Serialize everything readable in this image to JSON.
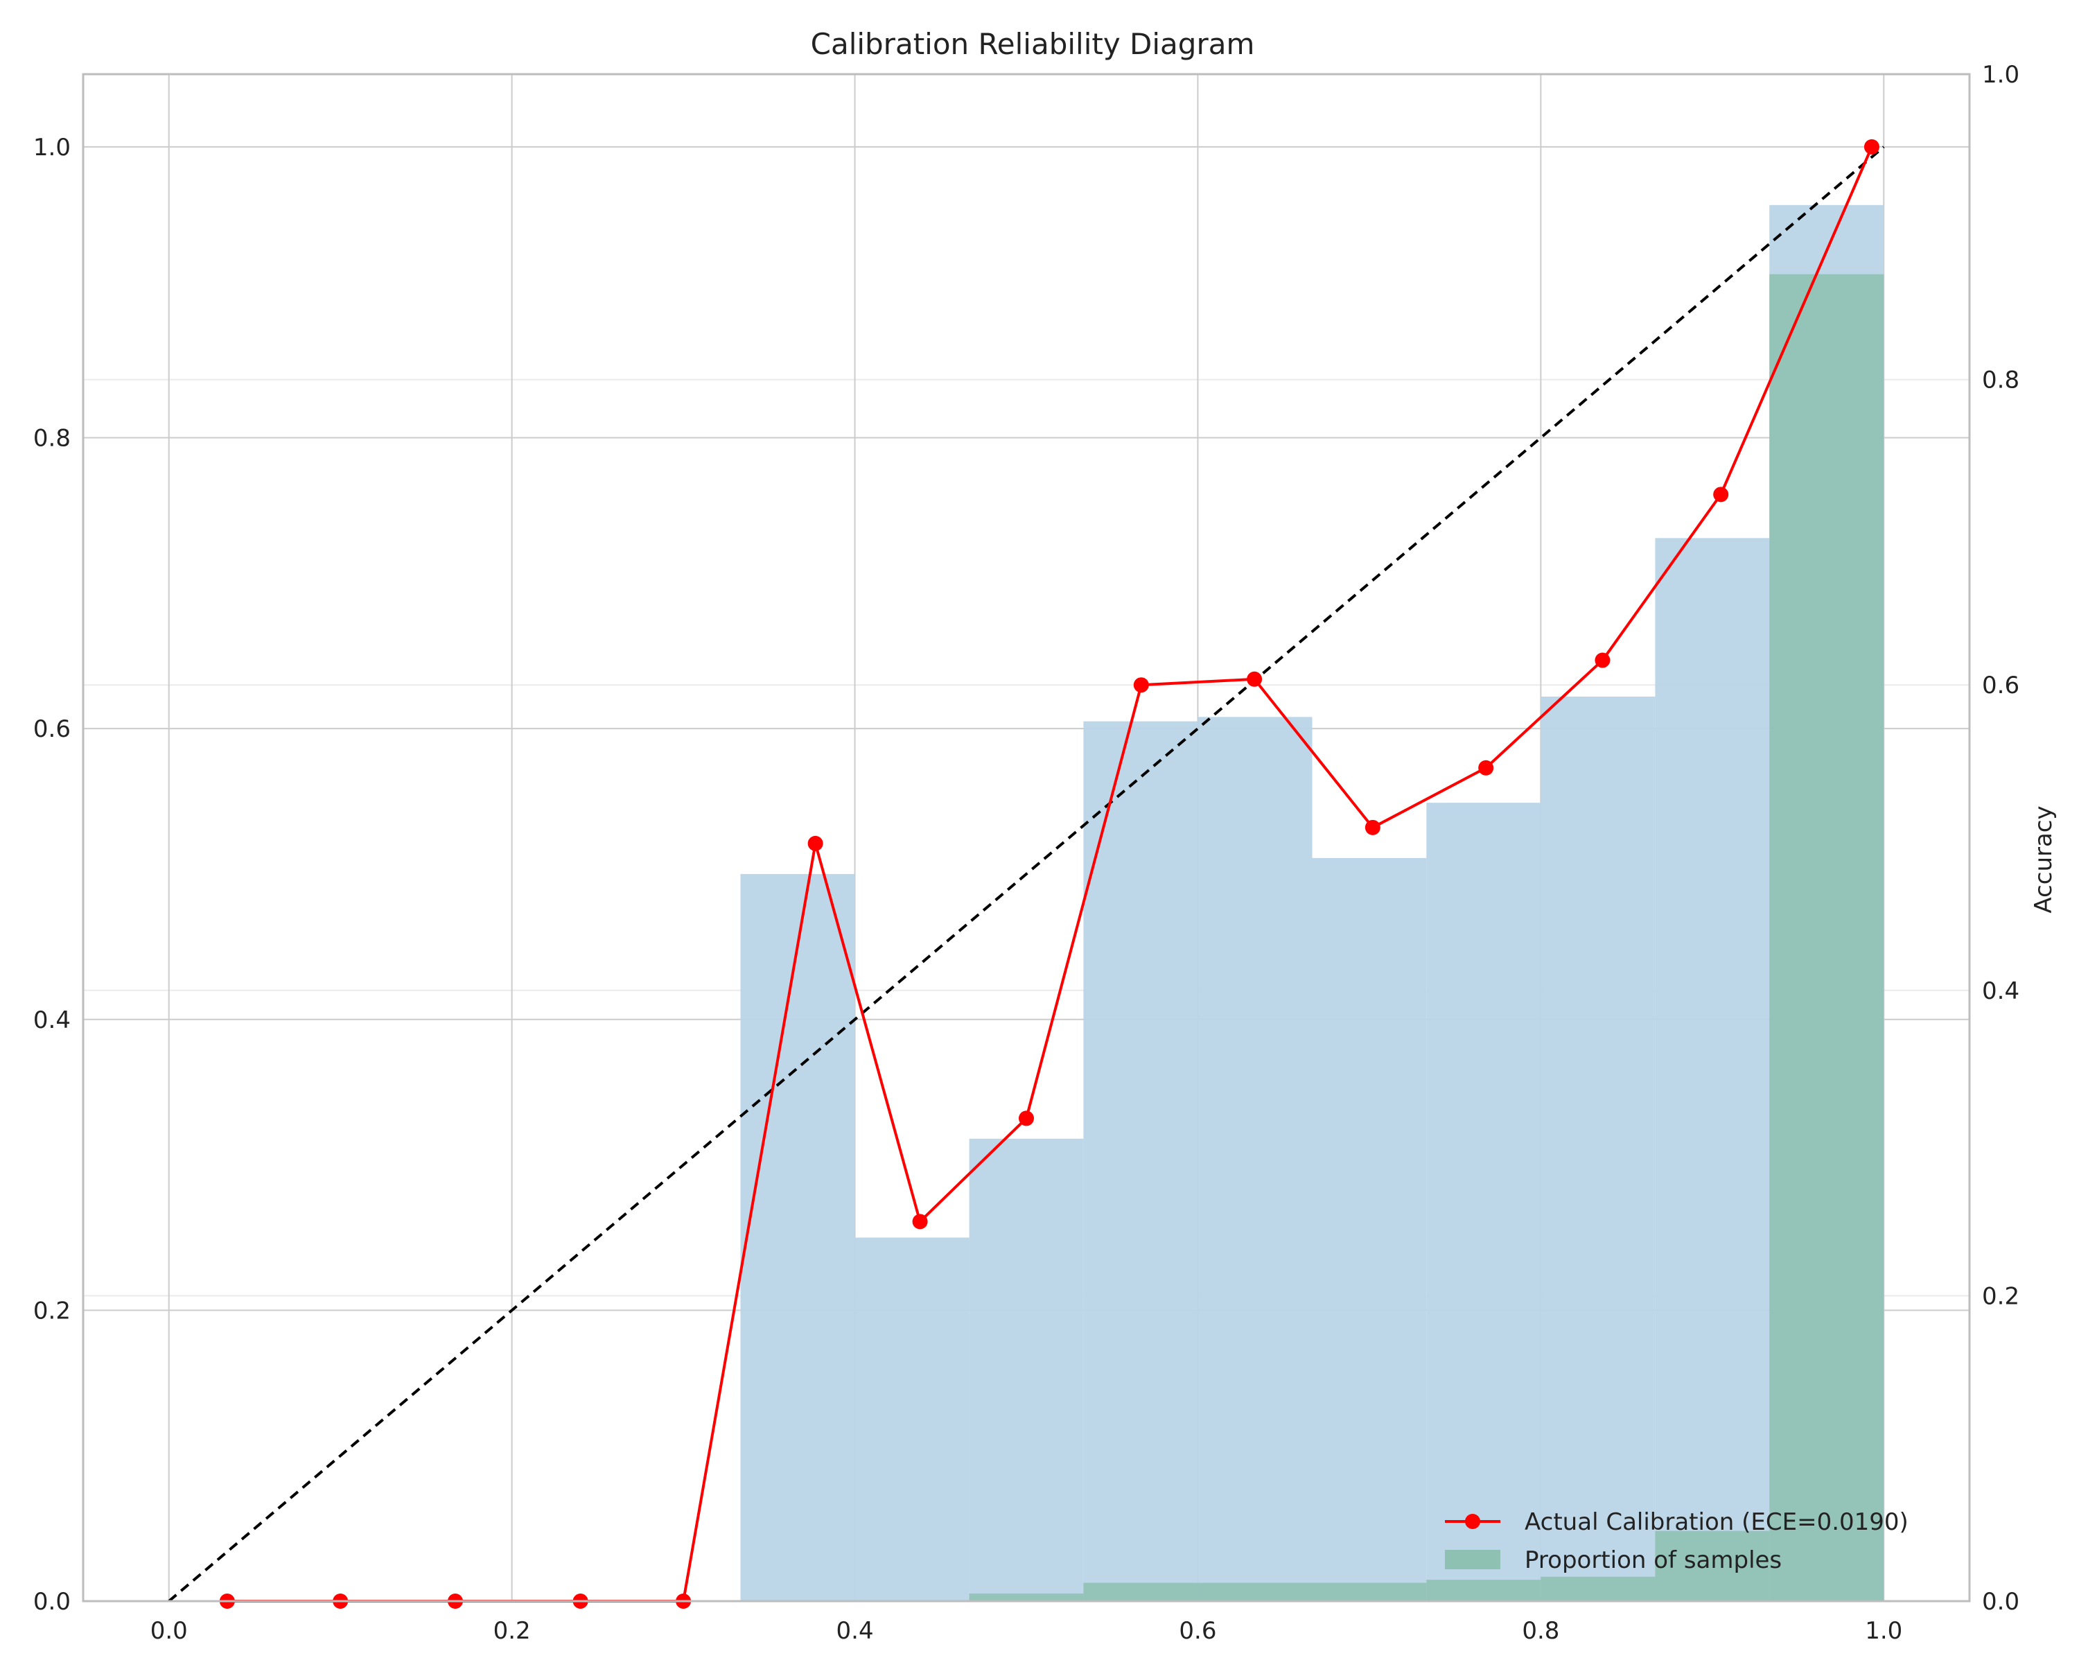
{
  "chart_data": {
    "type": "bar+line",
    "title": "Calibration Reliability Diagram",
    "xlabel": "",
    "ylabel_left": "",
    "ylabel_right": "Accuracy",
    "xlim": [
      -0.05,
      1.05
    ],
    "ylim_left": [
      0.0,
      1.05
    ],
    "ylim_right": [
      0.0,
      1.0
    ],
    "x_ticks": [
      "0.0",
      "0.2",
      "0.4",
      "0.6",
      "0.8",
      "1.0"
    ],
    "x_tick_values": [
      0.0,
      0.2,
      0.4,
      0.6,
      0.8,
      1.0
    ],
    "y_left_ticks": [
      "0.0",
      "0.2",
      "0.4",
      "0.6",
      "0.8",
      "1.0"
    ],
    "y_left_tick_values": [
      0.0,
      0.2,
      0.4,
      0.6,
      0.8,
      1.0
    ],
    "y_right_ticks": [
      "0.0",
      "0.2",
      "0.4",
      "0.6",
      "0.8",
      "1.0"
    ],
    "y_right_tick_values": [
      0.0,
      0.2,
      0.4,
      0.6,
      0.8,
      1.0
    ],
    "grid": true,
    "bin_edges": [
      0.0,
      0.0667,
      0.1333,
      0.2,
      0.2667,
      0.3333,
      0.4,
      0.4667,
      0.5333,
      0.6,
      0.6667,
      0.7333,
      0.8,
      0.8667,
      0.9333,
      1.0
    ],
    "bars_accuracy_left_axis": [
      0,
      0,
      0,
      0,
      0,
      0.5,
      0.25,
      0.318,
      0.605,
      0.608,
      0.511,
      0.549,
      0.622,
      0.731,
      0.96
    ],
    "bars_proportion_right_axis": [
      0,
      0,
      0,
      0,
      0,
      0,
      0,
      0.005,
      0.012,
      0.012,
      0.012,
      0.014,
      0.016,
      0.046,
      0.869
    ],
    "calibration_curve": {
      "name": "Actual Calibration (ECE=0.0190)",
      "x": [
        0.034,
        0.1,
        0.167,
        0.24,
        0.3,
        0.377,
        0.438,
        0.5,
        0.567,
        0.633,
        0.702,
        0.768,
        0.836,
        0.905,
        0.993
      ],
      "y": [
        0.0,
        0.0,
        0.0,
        0.0,
        0.0,
        0.521,
        0.261,
        0.332,
        0.63,
        0.634,
        0.532,
        0.573,
        0.647,
        0.761,
        1.0
      ]
    },
    "perfect_line": {
      "x": [
        0.0,
        1.0
      ],
      "y": [
        0.0,
        1.0
      ]
    },
    "legend": {
      "position": "lower-right",
      "items": [
        "Actual Calibration (ECE=0.0190)",
        "Proportion of samples"
      ]
    },
    "colors": {
      "accuracy_bars": "#b9d5e8",
      "proportion_bars": "#8fc1b3",
      "curve": "#ff0000",
      "perfect_line": "#000000",
      "grid": "#cccccc",
      "right_grid": "#ebebeb"
    }
  }
}
